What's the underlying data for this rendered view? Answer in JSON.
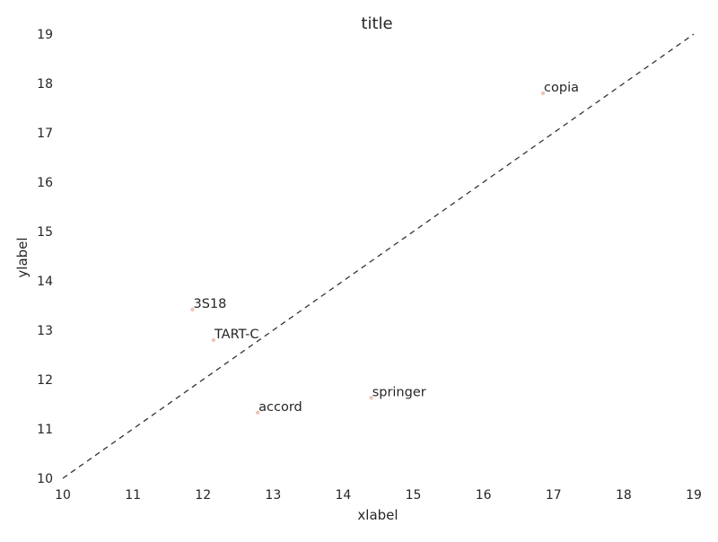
{
  "chart_data": {
    "type": "scatter",
    "title": "title",
    "xlabel": "xlabel",
    "ylabel": "ylabel",
    "xlim": [
      10,
      19
    ],
    "ylim": [
      10,
      19
    ],
    "xticks": [
      10,
      11,
      12,
      13,
      14,
      15,
      16,
      17,
      18,
      19
    ],
    "yticks": [
      10,
      11,
      12,
      13,
      14,
      15,
      16,
      17,
      18,
      19
    ],
    "grid": false,
    "reference_line": {
      "style": "dashed",
      "from": [
        10,
        10
      ],
      "to": [
        19,
        19
      ],
      "color": "#333333"
    },
    "point_color": "#f0c4b8",
    "points": [
      {
        "label": "copia",
        "x": 16.85,
        "y": 17.8
      },
      {
        "label": "3S18",
        "x": 11.85,
        "y": 13.42
      },
      {
        "label": "TART-C",
        "x": 12.15,
        "y": 12.8
      },
      {
        "label": "springer",
        "x": 14.4,
        "y": 11.63
      },
      {
        "label": "accord",
        "x": 12.78,
        "y": 11.33
      }
    ]
  }
}
